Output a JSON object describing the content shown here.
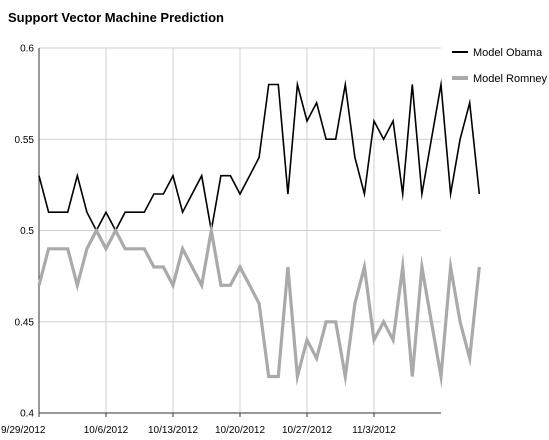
{
  "chart_data": {
    "type": "line",
    "title": "Support Vector Machine Prediction",
    "xlabel": "",
    "ylabel": "",
    "ylim": [
      0.4,
      0.6
    ],
    "yticks": [
      "0.4",
      "0.45",
      "0.5",
      "0.55",
      "0.6"
    ],
    "x_start": "9/29/2012",
    "x_end": "11/10/2012",
    "xticks": [
      "9/29/2012",
      "10/6/2012",
      "10/13/2012",
      "10/20/2012",
      "10/27/2012",
      "11/3/2012"
    ],
    "grid": "horizontal",
    "legend_position": "right",
    "series": [
      {
        "name": "Model Obama",
        "color": "#000000",
        "values": [
          0.53,
          0.51,
          0.51,
          0.51,
          0.53,
          0.51,
          0.5,
          0.51,
          0.5,
          0.51,
          0.51,
          0.51,
          0.52,
          0.52,
          0.53,
          0.51,
          0.52,
          0.53,
          0.5,
          0.53,
          0.53,
          0.52,
          0.53,
          0.54,
          0.58,
          0.58,
          0.52,
          0.58,
          0.56,
          0.57,
          0.55,
          0.55,
          0.58,
          0.54,
          0.52,
          0.56,
          0.55,
          0.56,
          0.52,
          0.58,
          0.52,
          0.55,
          0.58,
          0.52,
          0.55,
          0.57,
          0.52
        ]
      },
      {
        "name": "Model Romney",
        "color": "#aaaaaa",
        "values": [
          0.47,
          0.49,
          0.49,
          0.49,
          0.47,
          0.49,
          0.5,
          0.49,
          0.5,
          0.49,
          0.49,
          0.49,
          0.48,
          0.48,
          0.47,
          0.49,
          0.48,
          0.47,
          0.5,
          0.47,
          0.47,
          0.48,
          0.47,
          0.46,
          0.42,
          0.42,
          0.48,
          0.42,
          0.44,
          0.43,
          0.45,
          0.45,
          0.42,
          0.46,
          0.48,
          0.44,
          0.45,
          0.44,
          0.48,
          0.42,
          0.48,
          0.45,
          0.42,
          0.48,
          0.45,
          0.43,
          0.48
        ]
      }
    ]
  }
}
